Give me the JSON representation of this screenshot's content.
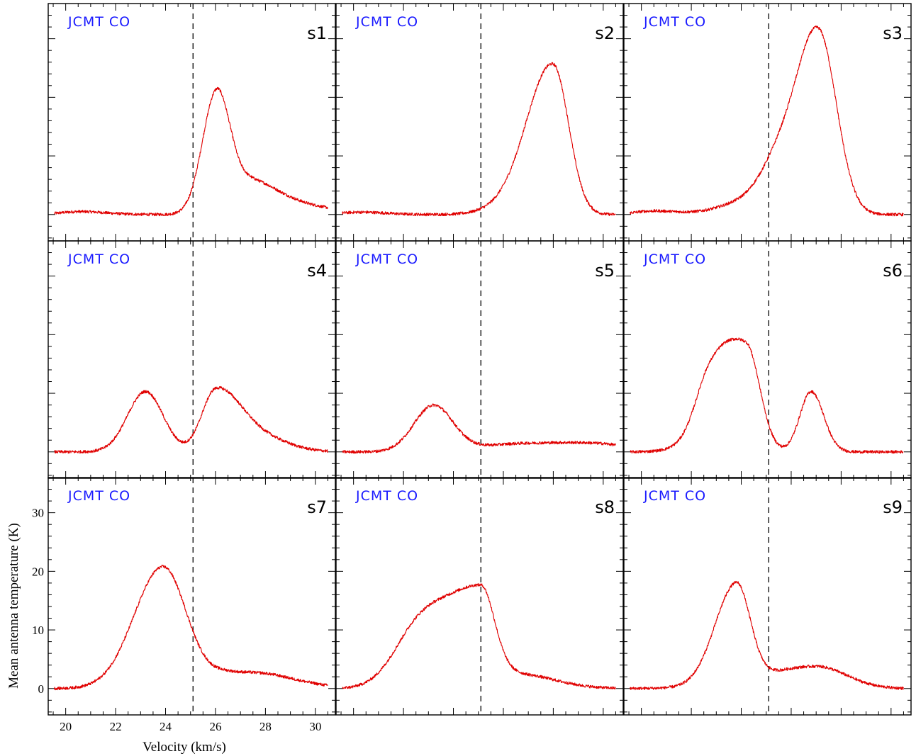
{
  "chart_data": {
    "type": "line",
    "grid": false,
    "xlabel": "Velocity (km/s)",
    "ylabel": "Mean antenna temperature (K)",
    "xlim": [
      19.3,
      30.8
    ],
    "ylim": [
      -4.5,
      36
    ],
    "x_ticks": [
      20,
      22,
      24,
      26,
      28,
      30
    ],
    "y_ticks": [
      0,
      10,
      20,
      30
    ],
    "vline_x": 25.1,
    "panels": [
      {
        "label": "s1",
        "instrument": "JCMT CO",
        "baseline": 0,
        "components": [
          {
            "amp": 18.8,
            "center": 26.0,
            "sigma_left": 0.55,
            "sigma_right": 0.5
          },
          {
            "amp": 5.5,
            "center": 26.8,
            "sigma_left": 0.6,
            "sigma_right": 1.4
          },
          {
            "amp": 1.5,
            "center": 28.3,
            "sigma_left": 1.2,
            "sigma_right": 2.5
          },
          {
            "amp": 0.5,
            "center": 20.6,
            "sigma_left": 0.8,
            "sigma_right": 1.0
          }
        ]
      },
      {
        "label": "s2",
        "instrument": "JCMT CO",
        "baseline": 0,
        "components": [
          {
            "amp": 24.6,
            "center": 28.0,
            "sigma_left": 1.0,
            "sigma_right": 0.62
          },
          {
            "amp": 2.2,
            "center": 26.8,
            "sigma_left": 1.1,
            "sigma_right": 1.0
          },
          {
            "amp": 0.4,
            "center": 20.3,
            "sigma_left": 0.8,
            "sigma_right": 1.0
          }
        ]
      },
      {
        "label": "s3",
        "instrument": "JCMT CO",
        "baseline": 0,
        "components": [
          {
            "amp": 30.5,
            "center": 27.1,
            "sigma_left": 0.85,
            "sigma_right": 0.72
          },
          {
            "amp": 7.5,
            "center": 25.6,
            "sigma_left": 0.75,
            "sigma_right": 0.8
          },
          {
            "amp": 2.5,
            "center": 24.5,
            "sigma_left": 1.2,
            "sigma_right": 0.9
          },
          {
            "amp": 0.6,
            "center": 20.5,
            "sigma_left": 0.8,
            "sigma_right": 1.0
          }
        ]
      },
      {
        "label": "s4",
        "instrument": "JCMT CO",
        "baseline": 0,
        "components": [
          {
            "amp": 10.3,
            "center": 23.2,
            "sigma_left": 0.72,
            "sigma_right": 0.7
          },
          {
            "amp": 10.1,
            "center": 26.0,
            "sigma_left": 0.55,
            "sigma_right": 0.9
          },
          {
            "amp": 3.0,
            "center": 27.5,
            "sigma_left": 0.9,
            "sigma_right": 1.2
          }
        ]
      },
      {
        "label": "s5",
        "instrument": "JCMT CO",
        "baseline": 0,
        "components": [
          {
            "amp": 7.8,
            "center": 23.2,
            "sigma_left": 0.78,
            "sigma_right": 0.78
          },
          {
            "amp": 1.4,
            "center": 26.8,
            "sigma_left": 1.8,
            "sigma_right": 2.5
          },
          {
            "amp": 0.8,
            "center": 30.0,
            "sigma_left": 1.5,
            "sigma_right": 1.0
          }
        ]
      },
      {
        "label": "s6",
        "instrument": "JCMT CO",
        "baseline": 0,
        "components": [
          {
            "amp": 17.5,
            "center": 24.2,
            "sigma_left": 1.2,
            "sigma_right": 0.55
          },
          {
            "amp": 7.0,
            "center": 22.7,
            "sigma_left": 0.55,
            "sigma_right": 0.8
          },
          {
            "amp": 10.3,
            "center": 26.8,
            "sigma_left": 0.45,
            "sigma_right": 0.5
          }
        ]
      },
      {
        "label": "s7",
        "instrument": "JCMT CO",
        "baseline": 0,
        "components": [
          {
            "amp": 20.8,
            "center": 23.9,
            "sigma_left": 1.15,
            "sigma_right": 0.95
          },
          {
            "amp": 2.5,
            "center": 26.6,
            "sigma_left": 0.8,
            "sigma_right": 1.6
          },
          {
            "amp": 1.0,
            "center": 28.5,
            "sigma_left": 1.0,
            "sigma_right": 1.5
          }
        ]
      },
      {
        "label": "s8",
        "instrument": "JCMT CO",
        "baseline": 0,
        "components": [
          {
            "amp": 16.5,
            "center": 25.1,
            "sigma_left": 1.5,
            "sigma_right": 0.55
          },
          {
            "amp": 8.5,
            "center": 22.6,
            "sigma_left": 1.0,
            "sigma_right": 1.1
          },
          {
            "amp": 2.5,
            "center": 26.5,
            "sigma_left": 0.8,
            "sigma_right": 1.5
          }
        ]
      },
      {
        "label": "s9",
        "instrument": "JCMT CO",
        "baseline": 0,
        "components": [
          {
            "amp": 16.8,
            "center": 23.8,
            "sigma_left": 0.85,
            "sigma_right": 0.55
          },
          {
            "amp": 3.8,
            "center": 27.0,
            "sigma_left": 2.2,
            "sigma_right": 1.2
          }
        ]
      }
    ]
  }
}
